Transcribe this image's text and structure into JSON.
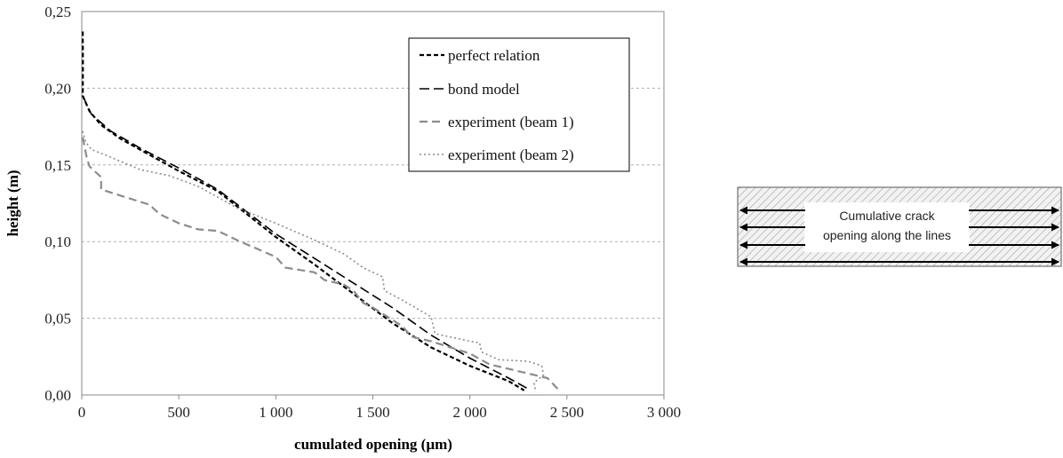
{
  "chart_data": {
    "type": "line",
    "xlabel": "cumulated opening (µm)",
    "ylabel": "height (m)",
    "xlim": [
      0,
      3000
    ],
    "ylim": [
      0,
      0.25
    ],
    "x_ticks": [
      "0",
      "500",
      "1 000",
      "1 500",
      "2 000",
      "2 500",
      "3 000"
    ],
    "y_ticks": [
      "0,00",
      "0,05",
      "0,10",
      "0,15",
      "0,20",
      "0,25"
    ],
    "grid": "horizontal dashed",
    "legend_position": "top-right",
    "series": [
      {
        "name": "perfect relation",
        "style": "short-dash",
        "color": "#000000",
        "points": [
          [
            5,
            0.237
          ],
          [
            6,
            0.215
          ],
          [
            5,
            0.195
          ],
          [
            40,
            0.185
          ],
          [
            100,
            0.176
          ],
          [
            200,
            0.167
          ],
          [
            300,
            0.16
          ],
          [
            500,
            0.146
          ],
          [
            700,
            0.133
          ],
          [
            1000,
            0.103
          ],
          [
            1200,
            0.085
          ],
          [
            1400,
            0.066
          ],
          [
            1600,
            0.047
          ],
          [
            1800,
            0.031
          ],
          [
            2000,
            0.019
          ],
          [
            2200,
            0.009
          ],
          [
            2280,
            0.003
          ]
        ]
      },
      {
        "name": "bond model",
        "style": "long-dash",
        "color": "#000000",
        "points": [
          [
            5,
            0.195
          ],
          [
            50,
            0.183
          ],
          [
            150,
            0.172
          ],
          [
            300,
            0.161
          ],
          [
            500,
            0.148
          ],
          [
            700,
            0.134
          ],
          [
            1000,
            0.105
          ],
          [
            1200,
            0.089
          ],
          [
            1400,
            0.073
          ],
          [
            1600,
            0.057
          ],
          [
            1800,
            0.039
          ],
          [
            2000,
            0.024
          ],
          [
            2200,
            0.011
          ],
          [
            2300,
            0.004
          ]
        ]
      },
      {
        "name": "experiment (beam 1)",
        "style": "dash",
        "color": "#8c8c8c",
        "points": [
          [
            5,
            0.168
          ],
          [
            25,
            0.155
          ],
          [
            40,
            0.149
          ],
          [
            100,
            0.142
          ],
          [
            100,
            0.134
          ],
          [
            200,
            0.13
          ],
          [
            350,
            0.124
          ],
          [
            400,
            0.118
          ],
          [
            500,
            0.112
          ],
          [
            600,
            0.108
          ],
          [
            700,
            0.107
          ],
          [
            800,
            0.101
          ],
          [
            1000,
            0.09
          ],
          [
            1050,
            0.083
          ],
          [
            1200,
            0.08
          ],
          [
            1250,
            0.075
          ],
          [
            1350,
            0.072
          ],
          [
            1400,
            0.068
          ],
          [
            1450,
            0.06
          ],
          [
            1500,
            0.057
          ],
          [
            1550,
            0.053
          ],
          [
            1650,
            0.045
          ],
          [
            1700,
            0.038
          ],
          [
            1800,
            0.035
          ],
          [
            1900,
            0.031
          ],
          [
            2000,
            0.027
          ],
          [
            2100,
            0.02
          ],
          [
            2200,
            0.017
          ],
          [
            2300,
            0.014
          ],
          [
            2400,
            0.011
          ],
          [
            2460,
            0.003
          ]
        ]
      },
      {
        "name": "experiment (beam 2)",
        "style": "dot",
        "color": "#8c8c8c",
        "points": [
          [
            5,
            0.172
          ],
          [
            20,
            0.165
          ],
          [
            50,
            0.16
          ],
          [
            150,
            0.155
          ],
          [
            300,
            0.147
          ],
          [
            450,
            0.143
          ],
          [
            600,
            0.136
          ],
          [
            800,
            0.122
          ],
          [
            1000,
            0.112
          ],
          [
            1200,
            0.101
          ],
          [
            1350,
            0.092
          ],
          [
            1450,
            0.083
          ],
          [
            1550,
            0.077
          ],
          [
            1560,
            0.068
          ],
          [
            1650,
            0.062
          ],
          [
            1800,
            0.051
          ],
          [
            1820,
            0.04
          ],
          [
            2000,
            0.035
          ],
          [
            2050,
            0.034
          ],
          [
            2060,
            0.028
          ],
          [
            2150,
            0.023
          ],
          [
            2300,
            0.022
          ],
          [
            2370,
            0.019
          ],
          [
            2380,
            0.013
          ],
          [
            2330,
            0.008
          ],
          [
            2340,
            0.002
          ]
        ]
      }
    ]
  },
  "inset": {
    "text_line1": "Cumulative crack",
    "text_line2": "opening along the lines"
  }
}
